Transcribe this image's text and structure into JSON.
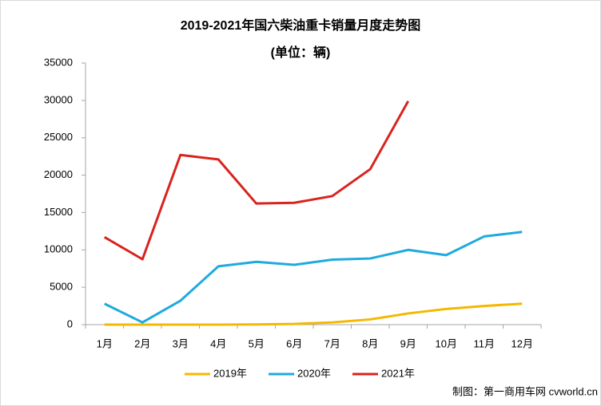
{
  "chart_data": {
    "type": "line",
    "title": "2019-2021年国六柴油重卡销量月度走势图",
    "subtitle": "(单位：辆)",
    "source": "制图：第一商用车网 cvworld.cn",
    "categories": [
      "1月",
      "2月",
      "3月",
      "4月",
      "5月",
      "6月",
      "7月",
      "8月",
      "9月",
      "10月",
      "11月",
      "12月"
    ],
    "series": [
      {
        "name": "2019年",
        "color": "#f5b800",
        "values": [
          0,
          0,
          0,
          0,
          30,
          100,
          300,
          700,
          1500,
          2100,
          2500,
          2800
        ]
      },
      {
        "name": "2020年",
        "color": "#1eaadf",
        "values": [
          2800,
          300,
          3200,
          7800,
          8400,
          8000,
          8700,
          8850,
          10000,
          9300,
          11800,
          12400
        ]
      },
      {
        "name": "2021年",
        "color": "#d9231e",
        "values": [
          11700,
          8750,
          22700,
          22100,
          16200,
          16300,
          17200,
          20800,
          29900,
          null,
          null,
          null
        ]
      }
    ],
    "ylim": [
      0,
      35000
    ],
    "yticks": [
      0,
      5000,
      10000,
      15000,
      20000,
      25000,
      30000,
      35000
    ],
    "grid": false,
    "legend": "bottom"
  }
}
